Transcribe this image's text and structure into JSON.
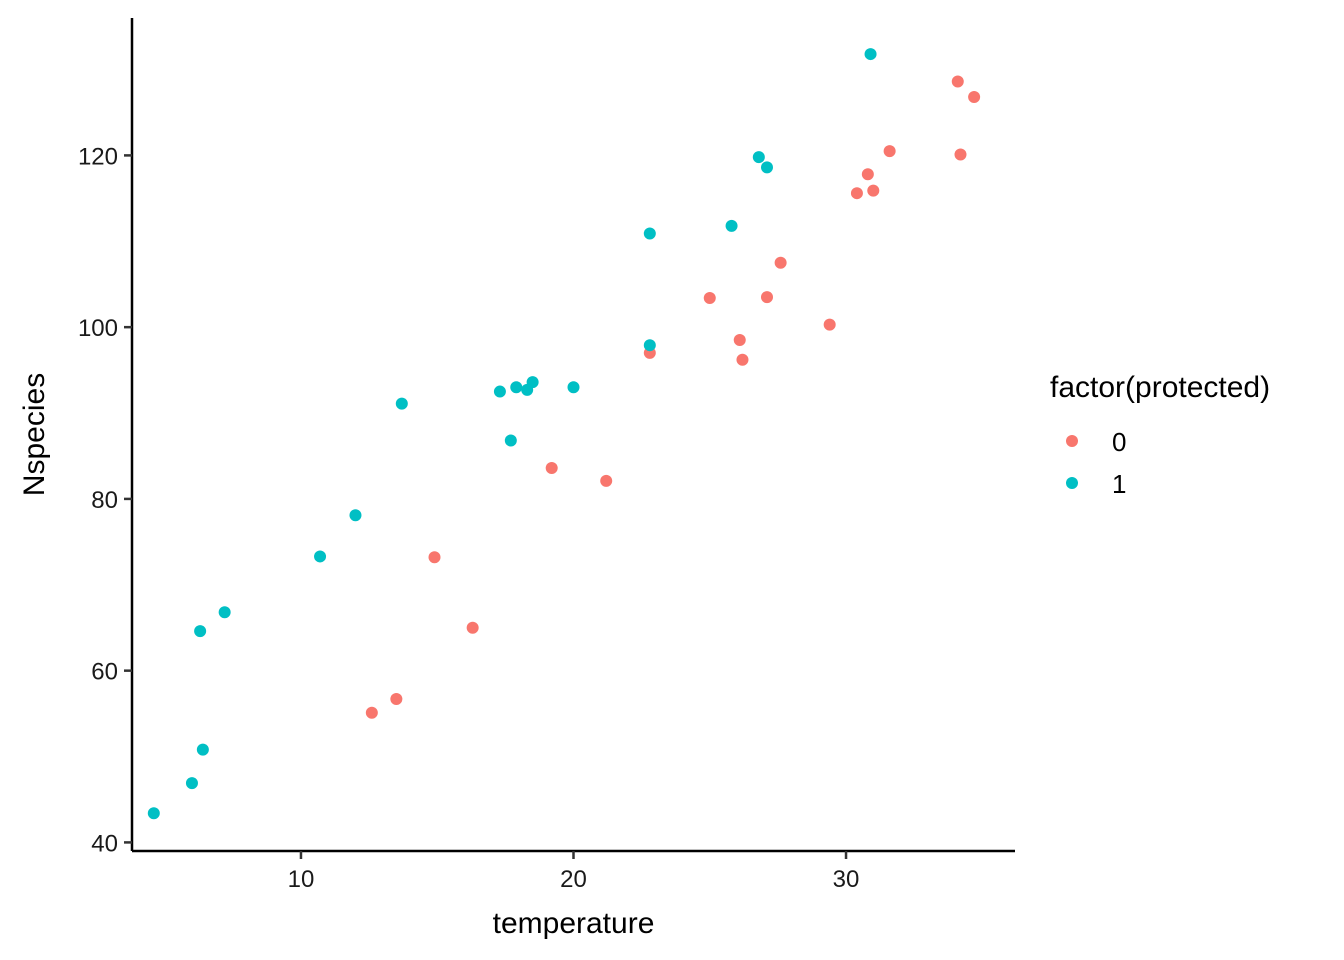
{
  "chart_data": {
    "type": "scatter",
    "title": "",
    "xlabel": "temperature",
    "ylabel": "Nspecies",
    "xlim": [
      3.8,
      36.2
    ],
    "ylim": [
      39,
      136
    ],
    "x_ticks": [
      10,
      20,
      30
    ],
    "y_ticks": [
      40,
      60,
      80,
      100,
      120
    ],
    "grid": false,
    "legend_title": "factor(protected)",
    "legend_position": "right",
    "series": [
      {
        "name": "0",
        "color": "#F8766D",
        "points": [
          [
            12.6,
            55.1
          ],
          [
            13.5,
            56.7
          ],
          [
            14.9,
            73.2
          ],
          [
            16.3,
            65.0
          ],
          [
            19.2,
            83.6
          ],
          [
            21.2,
            82.1
          ],
          [
            22.8,
            97.0
          ],
          [
            25.0,
            103.4
          ],
          [
            26.1,
            98.5
          ],
          [
            26.2,
            96.2
          ],
          [
            27.1,
            103.5
          ],
          [
            27.6,
            107.5
          ],
          [
            29.4,
            100.3
          ],
          [
            30.4,
            115.6
          ],
          [
            30.8,
            117.8
          ],
          [
            31.0,
            115.9
          ],
          [
            31.6,
            120.5
          ],
          [
            34.1,
            128.6
          ],
          [
            34.2,
            120.1
          ],
          [
            34.7,
            126.8
          ]
        ]
      },
      {
        "name": "1",
        "color": "#00BFC4",
        "points": [
          [
            4.6,
            43.4
          ],
          [
            6.0,
            46.9
          ],
          [
            6.3,
            64.6
          ],
          [
            6.4,
            50.8
          ],
          [
            7.2,
            66.8
          ],
          [
            10.7,
            73.3
          ],
          [
            12.0,
            78.1
          ],
          [
            13.7,
            91.1
          ],
          [
            17.3,
            92.5
          ],
          [
            17.7,
            86.8
          ],
          [
            17.9,
            93.0
          ],
          [
            18.3,
            92.7
          ],
          [
            18.5,
            93.6
          ],
          [
            20.0,
            93.0
          ],
          [
            22.8,
            97.9
          ],
          [
            22.8,
            110.9
          ],
          [
            25.8,
            111.8
          ],
          [
            26.8,
            119.8
          ],
          [
            27.1,
            118.6
          ],
          [
            30.9,
            131.8
          ]
        ]
      }
    ]
  }
}
